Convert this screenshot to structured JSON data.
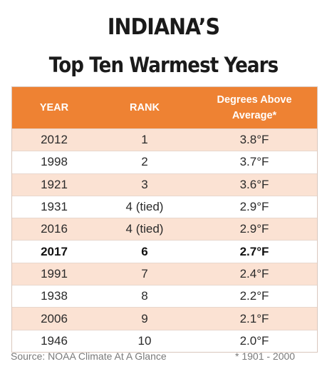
{
  "title": {
    "line1": "INDIANA’S",
    "line2": "Top Ten Warmest Years"
  },
  "table": {
    "headers": {
      "year": "YEAR",
      "rank": "RANK",
      "degrees_line1": "Degrees Above",
      "degrees_line2": "Average*"
    },
    "rows": [
      {
        "year": "2012",
        "rank": "1",
        "degrees": "3.8°F"
      },
      {
        "year": "1998",
        "rank": "2",
        "degrees": "3.7°F"
      },
      {
        "year": "1921",
        "rank": "3",
        "degrees": "3.6°F"
      },
      {
        "year": "1931",
        "rank": "4 (tied)",
        "degrees": "2.9°F"
      },
      {
        "year": "2016",
        "rank": "4 (tied)",
        "degrees": "2.9°F"
      },
      {
        "year": "2017",
        "rank": "6",
        "degrees": "2.7°F",
        "highlight": true
      },
      {
        "year": "1991",
        "rank": "7",
        "degrees": "2.4°F"
      },
      {
        "year": "1938",
        "rank": "8",
        "degrees": "2.2°F"
      },
      {
        "year": "2006",
        "rank": "9",
        "degrees": "2.1°F"
      },
      {
        "year": "1946",
        "rank": "10",
        "degrees": "2.0°F"
      }
    ]
  },
  "footer": {
    "source": "Source: NOAA Climate At A Glance",
    "note": "* 1901 - 2000"
  },
  "colors": {
    "header": "#ee8233",
    "stripe": "#fbe2d3"
  }
}
